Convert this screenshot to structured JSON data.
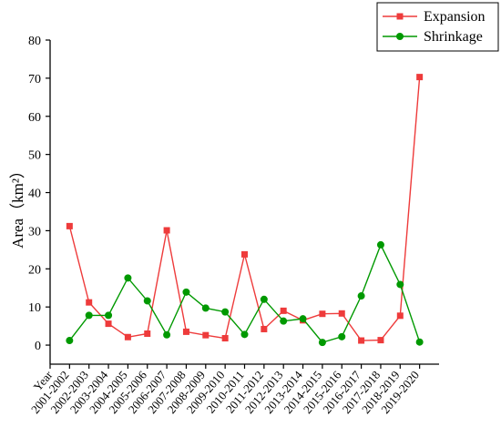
{
  "chart_data": {
    "type": "line",
    "title": "",
    "xlabel": "",
    "ylabel": "Area（km²）",
    "x_axis_first_label": "Year",
    "ylim": [
      -5,
      80
    ],
    "yticks": [
      0,
      10,
      20,
      30,
      40,
      50,
      60,
      70,
      80
    ],
    "grid": false,
    "legend_position": "top-right",
    "categories": [
      "2001-2002",
      "2002-2003",
      "2003-2004",
      "2004-2005",
      "2005-2006",
      "2006-2007",
      "2007-2008",
      "2008-2009",
      "2009-2010",
      "2010-2011",
      "2011-2012",
      "2012-2013",
      "2013-2014",
      "2014-2015",
      "2015-2016",
      "2016-2017",
      "2017-2018",
      "2018-2019",
      "2019-2020"
    ],
    "series": [
      {
        "name": "Expansion",
        "color": "#ee3b3b",
        "marker": "square",
        "values": [
          31.2,
          11.2,
          5.6,
          2.1,
          3.0,
          30.1,
          3.5,
          2.6,
          1.8,
          23.8,
          4.2,
          9.0,
          6.5,
          8.2,
          8.3,
          1.2,
          1.3,
          7.7,
          70.3
        ]
      },
      {
        "name": "Shrinkage",
        "color": "#009900",
        "marker": "circle",
        "values": [
          1.2,
          7.8,
          7.8,
          17.6,
          11.6,
          2.7,
          13.9,
          9.7,
          8.7,
          2.8,
          12.0,
          6.3,
          6.9,
          0.7,
          2.2,
          12.9,
          26.3,
          15.9,
          0.8
        ]
      }
    ]
  }
}
